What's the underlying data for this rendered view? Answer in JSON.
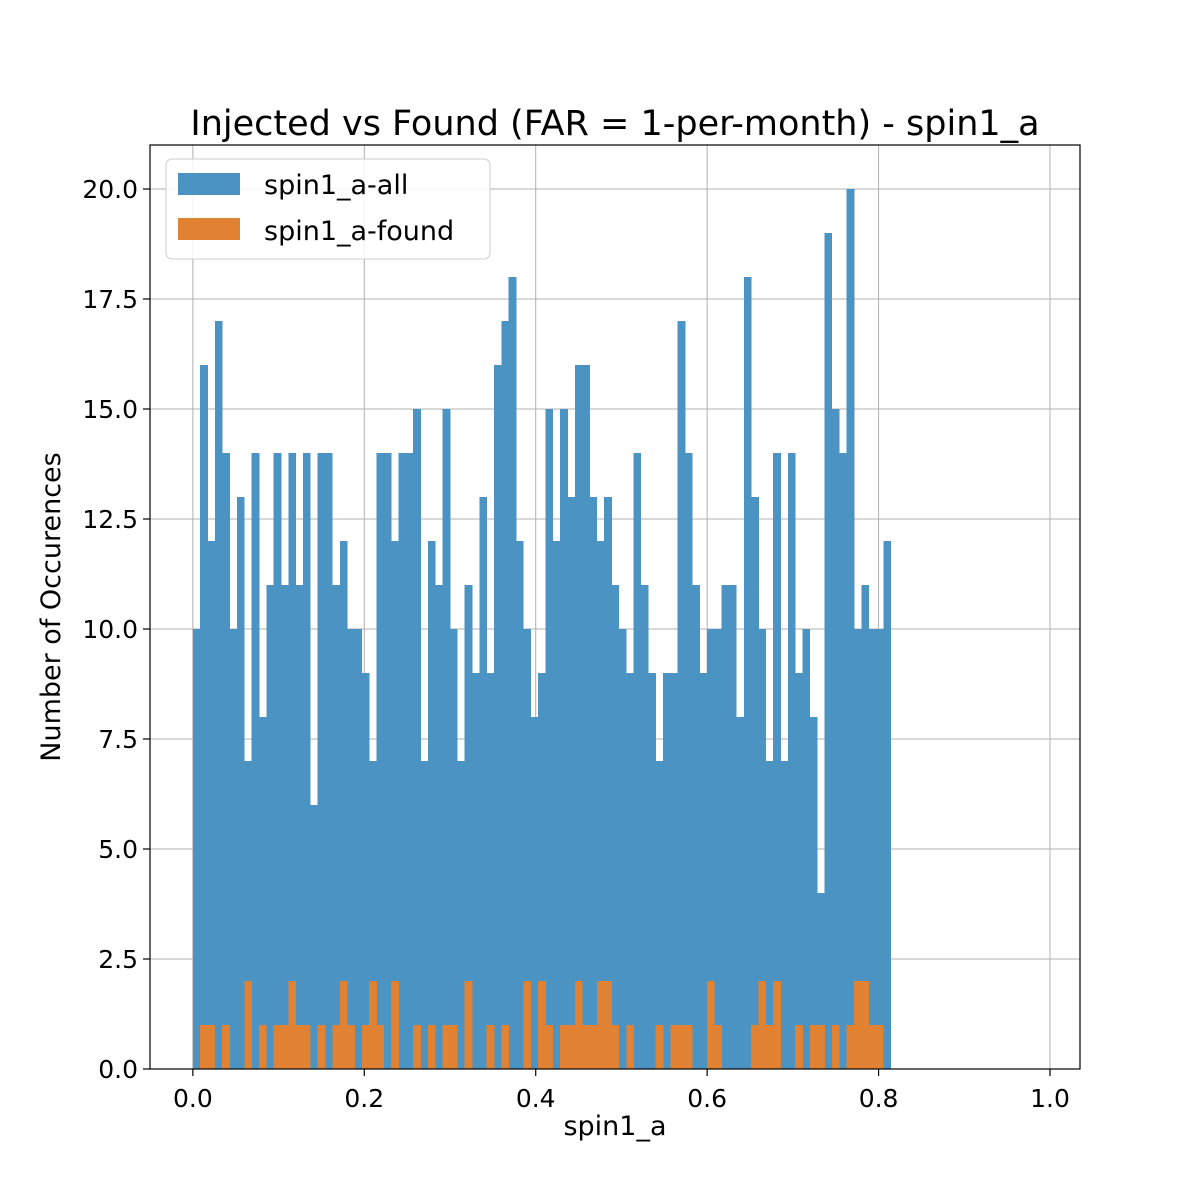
{
  "chart_data": {
    "type": "bar",
    "title": "Injected vs Found (FAR = 1-per-month) - spin1_a",
    "xlabel": "spin1_a",
    "ylabel": "Number of Occurences",
    "xlim": [
      -0.05,
      1.035
    ],
    "ylim": [
      0,
      21
    ],
    "xticks": [
      "0.0",
      "0.2",
      "0.4",
      "0.6",
      "0.8",
      "1.0"
    ],
    "yticks": [
      "0.0",
      "2.5",
      "5.0",
      "7.5",
      "10.0",
      "12.5",
      "15.0",
      "17.5",
      "20.0"
    ],
    "grid": true,
    "legend_position": "top-left",
    "bin_start": 0.0,
    "bin_width": 0.00857,
    "series": [
      {
        "name": "spin1_a-all",
        "color": "#4b93c3",
        "values": [
          10,
          16,
          12,
          17,
          14,
          10,
          13,
          7,
          14,
          8,
          11,
          14,
          11,
          14,
          11,
          14,
          6,
          14,
          14,
          11,
          12,
          10,
          10,
          9,
          7,
          14,
          14,
          12,
          14,
          14,
          15,
          7,
          12,
          11,
          15,
          10,
          7,
          11,
          9,
          13,
          9,
          16,
          17,
          18,
          12,
          10,
          8,
          9,
          15,
          12,
          15,
          13,
          16,
          16,
          13,
          12,
          13,
          11,
          10,
          9,
          14,
          11,
          9,
          7,
          9,
          9,
          17,
          14,
          11,
          9,
          10,
          10,
          11,
          11,
          8,
          18,
          13,
          10,
          7,
          14,
          7,
          14,
          9,
          10,
          8,
          4,
          19,
          15,
          14,
          20,
          10,
          11,
          10,
          10,
          12
        ]
      },
      {
        "name": "spin1_a-found",
        "color": "#e08232",
        "values": [
          0,
          1,
          1,
          0,
          1,
          0,
          0,
          2,
          0,
          1,
          0,
          1,
          1,
          2,
          1,
          1,
          0,
          1,
          0,
          1,
          2,
          1,
          0,
          1,
          2,
          1,
          0,
          2,
          0,
          0,
          1,
          0,
          1,
          0,
          1,
          1,
          0,
          2,
          0,
          0,
          1,
          0,
          1,
          0,
          0,
          2,
          0,
          2,
          1,
          0,
          1,
          1,
          2,
          1,
          1,
          2,
          2,
          1,
          0,
          1,
          0,
          0,
          0,
          1,
          0,
          1,
          1,
          1,
          0,
          0,
          2,
          1,
          0,
          0,
          0,
          0,
          1,
          2,
          1,
          2,
          0,
          0,
          1,
          0,
          1,
          1,
          0,
          1,
          0,
          1,
          2,
          2,
          1,
          1,
          0
        ]
      }
    ]
  }
}
